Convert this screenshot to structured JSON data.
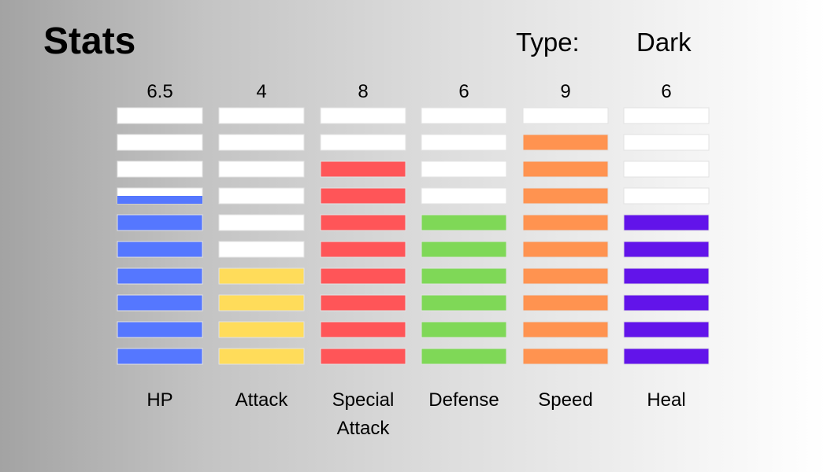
{
  "header": {
    "title": "Stats",
    "type_label": "Type:",
    "type_value": "Dark"
  },
  "chart_data": {
    "type": "bar",
    "title": "Stats",
    "segments": 10,
    "empty_color": "#ffffff",
    "categories": [
      "HP",
      "Attack",
      "Special Attack",
      "Defense",
      "Speed",
      "Heal"
    ],
    "category_lines": [
      [
        "HP"
      ],
      [
        "Attack"
      ],
      [
        "Special",
        "Attack"
      ],
      [
        "Defense"
      ],
      [
        "Speed"
      ],
      [
        "Heal"
      ]
    ],
    "value_labels": [
      "6.5",
      "4",
      "8",
      "6",
      "9",
      "6"
    ],
    "values": [
      6.5,
      4,
      8,
      6,
      9,
      6
    ],
    "colors": [
      "#5577ff",
      "#ffdc5a",
      "#ff5558",
      "#7fd857",
      "#ff9350",
      "#6214ea"
    ],
    "ylim": [
      0,
      10
    ]
  }
}
